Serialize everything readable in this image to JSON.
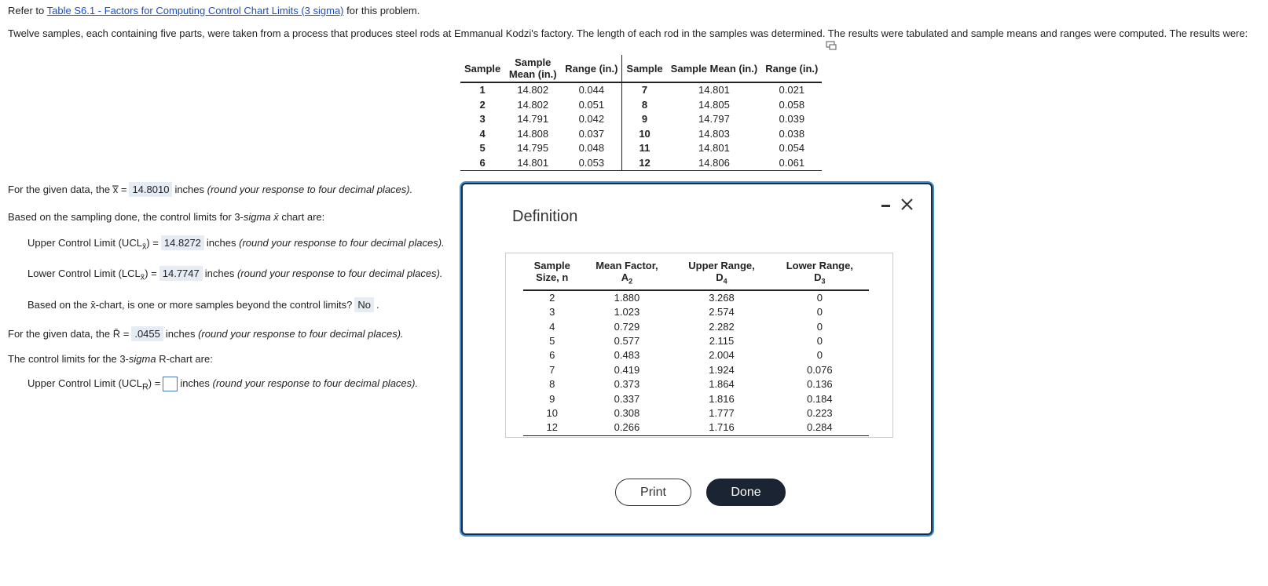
{
  "intro": {
    "prefix": "Refer to",
    "link": "Table S6.1 - Factors for Computing Control Chart Limits (3 sigma)",
    "suffix": "for this problem."
  },
  "problem": "Twelve samples, each containing five parts, were taken from a process that produces steel rods at Emmanual Kodzi's factory. The length of each rod in the samples was determined. The results were tabulated and sample means and ranges were computed. The results were:",
  "data_table": {
    "headers": [
      "Sample",
      "Sample Mean (in.)",
      "Range (in.)",
      "Sample",
      "Sample Mean (in.)",
      "Range (in.)"
    ],
    "rows": [
      [
        "1",
        "14.802",
        "0.044",
        "7",
        "14.801",
        "0.021"
      ],
      [
        "2",
        "14.802",
        "0.051",
        "8",
        "14.805",
        "0.058"
      ],
      [
        "3",
        "14.791",
        "0.042",
        "9",
        "14.797",
        "0.039"
      ],
      [
        "4",
        "14.808",
        "0.037",
        "10",
        "14.803",
        "0.038"
      ],
      [
        "5",
        "14.795",
        "0.048",
        "11",
        "14.801",
        "0.054"
      ],
      [
        "6",
        "14.801",
        "0.053",
        "12",
        "14.806",
        "0.061"
      ]
    ]
  },
  "questions": {
    "grand_mean": {
      "label": "For the given data, the",
      "symbol": "x̿",
      "eq": "=",
      "answer": "14.8010",
      "unit": "inches",
      "note": "(round your response to four decimal places)."
    },
    "xbar_intro": {
      "prefix": "Based on the sampling done, the control limits for 3-",
      "sigma": "sigma",
      "symbol": "x̄",
      "suffix": "chart are:"
    },
    "ucl_x": {
      "label": "Upper Control Limit (UCL",
      "sub": "x̄",
      "eq": ") =",
      "answer": "14.8272",
      "unit": "inches",
      "note": "(round your response to four decimal places)."
    },
    "lcl_x": {
      "label": "Lower Control Limit (LCL",
      "sub": "x̄",
      "eq": ") =",
      "answer": "14.7747",
      "unit": "inches",
      "note": "(round your response to four decimal places)."
    },
    "beyond": {
      "prefix": "Based on the",
      "symbol": "x̄",
      "text": "-chart, is one or more samples beyond the control limits?",
      "answer": "No",
      "end": "."
    },
    "rbar": {
      "label": "For the given data, the",
      "symbol": "R̄",
      "eq": "=",
      "answer": ".0455",
      "unit": "inches",
      "note": "(round your response to four decimal places)."
    },
    "r_intro": {
      "prefix": "The control limits for the 3-",
      "sigma": "sigma",
      "suffix": "R-chart are:"
    },
    "ucl_r": {
      "label": "Upper Control Limit (UCL",
      "sub": "R",
      "eq": ") =",
      "unit": "inches",
      "note": "(round your response to four decimal places)."
    }
  },
  "dialog": {
    "title": "Definition",
    "headers": [
      {
        "text": "Sample Size, n"
      },
      {
        "text": "Mean Factor,",
        "symbol": "A",
        "sub": "2"
      },
      {
        "text": "Upper Range,",
        "symbol": "D",
        "sub": "4"
      },
      {
        "text": "Lower Range,",
        "symbol": "D",
        "sub": "3"
      }
    ],
    "rows": [
      [
        "2",
        "1.880",
        "3.268",
        "0"
      ],
      [
        "3",
        "1.023",
        "2.574",
        "0"
      ],
      [
        "4",
        "0.729",
        "2.282",
        "0"
      ],
      [
        "5",
        "0.577",
        "2.115",
        "0"
      ],
      [
        "6",
        "0.483",
        "2.004",
        "0"
      ],
      [
        "7",
        "0.419",
        "1.924",
        "0.076"
      ],
      [
        "8",
        "0.373",
        "1.864",
        "0.136"
      ],
      [
        "9",
        "0.337",
        "1.816",
        "0.184"
      ],
      [
        "10",
        "0.308",
        "1.777",
        "0.223"
      ],
      [
        "12",
        "0.266",
        "1.716",
        "0.284"
      ]
    ],
    "buttons": {
      "print": "Print",
      "done": "Done"
    }
  }
}
